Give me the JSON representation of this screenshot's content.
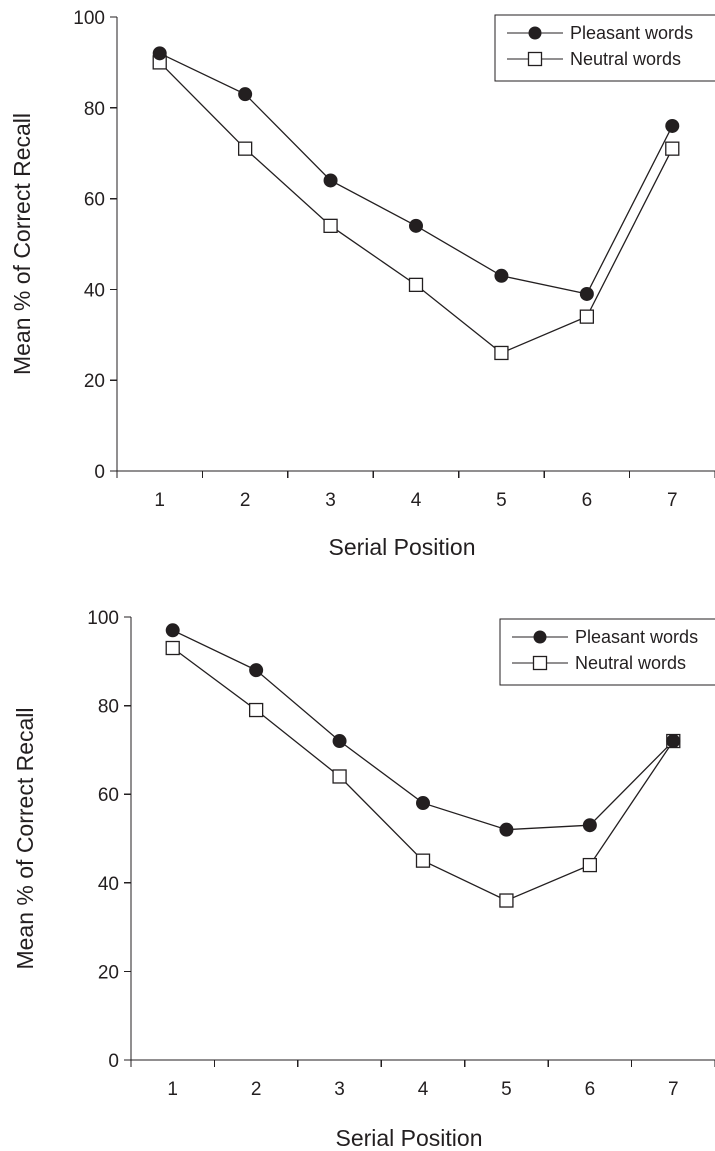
{
  "chart_data": [
    {
      "type": "line",
      "xlabel": "Serial Position",
      "ylabel": "Mean % of Correct Recall",
      "x": [
        1,
        2,
        3,
        4,
        5,
        6,
        7
      ],
      "xlim": [
        0.5,
        7.5
      ],
      "ylim": [
        0,
        100
      ],
      "yticks": [
        0,
        20,
        40,
        60,
        80,
        100
      ],
      "grid": false,
      "legend_position": "top-right",
      "series": [
        {
          "name": "Pleasant words",
          "marker": "filled-circle",
          "values": [
            92,
            83,
            64,
            54,
            43,
            39,
            76
          ]
        },
        {
          "name": "Neutral words",
          "marker": "open-square",
          "values": [
            90,
            71,
            54,
            41,
            26,
            34,
            71
          ]
        }
      ]
    },
    {
      "type": "line",
      "xlabel": "Serial Position",
      "ylabel": "Mean % of Correct Recall",
      "x": [
        1,
        2,
        3,
        4,
        5,
        6,
        7
      ],
      "xlim": [
        0.5,
        7.5
      ],
      "ylim": [
        0,
        100
      ],
      "yticks": [
        0,
        20,
        40,
        60,
        80,
        100
      ],
      "grid": false,
      "legend_position": "top-right",
      "series": [
        {
          "name": "Pleasant words",
          "marker": "filled-circle",
          "values": [
            97,
            88,
            72,
            58,
            52,
            53,
            72
          ]
        },
        {
          "name": "Neutral words",
          "marker": "open-square",
          "values": [
            93,
            79,
            64,
            45,
            36,
            44,
            72
          ]
        }
      ]
    }
  ],
  "colors": {
    "ink": "#231f20",
    "marker_fill_open": "#ffffff"
  }
}
